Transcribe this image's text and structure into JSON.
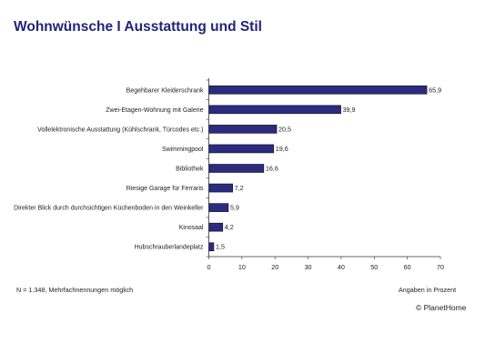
{
  "title": "Wohnwünsche I Ausstattung und Stil",
  "footnote": "N = 1.348, Mehrfachnennungen möglich",
  "unit_label": "Angaben in Prozent",
  "copyright": "© PlanetHome",
  "chart_data": {
    "type": "bar",
    "orientation": "horizontal",
    "categories": [
      "Begehbarer Kleiderschrank",
      "Zwei-Etagen-Wohnung mit Galerie",
      "Vollelektronische Ausstattung (Kühlschrank, Türcodes etc.)",
      "Swimmingpool",
      "Bibliothek",
      "Riesige Garage für Ferraris",
      "Direkter Blick durch durchsichtigen Küchenboden in den Weinkeller",
      "Kinosaal",
      "Hubschrauberlandeplatz"
    ],
    "values": [
      65.9,
      39.9,
      20.5,
      19.6,
      16.6,
      7.2,
      5.9,
      4.2,
      1.5
    ],
    "value_labels": [
      "65,9",
      "39,9",
      "20,5",
      "19,6",
      "16,6",
      "7,2",
      "5,9",
      "4,2",
      "1,5"
    ],
    "xlim": [
      0,
      70
    ],
    "xticks": [
      0,
      10,
      20,
      30,
      40,
      50,
      60,
      70
    ],
    "bar_color": "#2b2b80",
    "grid": false
  }
}
